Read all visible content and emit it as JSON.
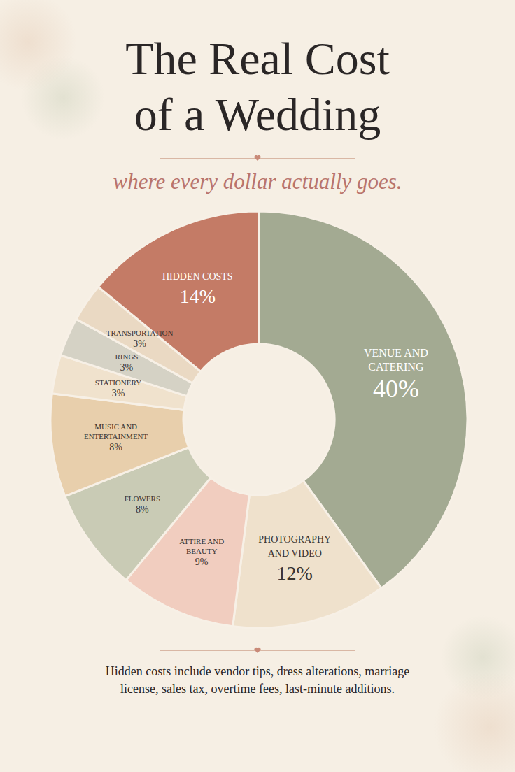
{
  "chart_data": {
    "type": "donut",
    "title": "The Real Cost of a Wedding",
    "subtitle": "where every dollar actually goes.",
    "categories": [
      "VENUE AND CATERING",
      "PHOTOGRAPHY AND VIDEO",
      "ATTIRE AND BEAUTY",
      "FLOWERS",
      "MUSIC AND ENTERTAINMENT",
      "STATIONERY",
      "RINGS",
      "TRANSPORTATION",
      "HIDDEN COSTS"
    ],
    "values": [
      40,
      12,
      9,
      8,
      8,
      3,
      3,
      3,
      14
    ],
    "value_labels": [
      "40%",
      "12%",
      "9%",
      "8%",
      "8%",
      "3%",
      "3%",
      "3%",
      "14%"
    ],
    "colors": [
      "#a3aa92",
      "#efe1cc",
      "#f1cdbf",
      "#c9cbb5",
      "#e8cfac",
      "#f0e2cd",
      "#d5d2c5",
      "#ead9c3",
      "#c47b66"
    ],
    "data_labels": true,
    "annotation": "Hidden costs include vendor tips, dress alterations, marriage license, sales tax, overtime fees, last-minute additions."
  }
}
